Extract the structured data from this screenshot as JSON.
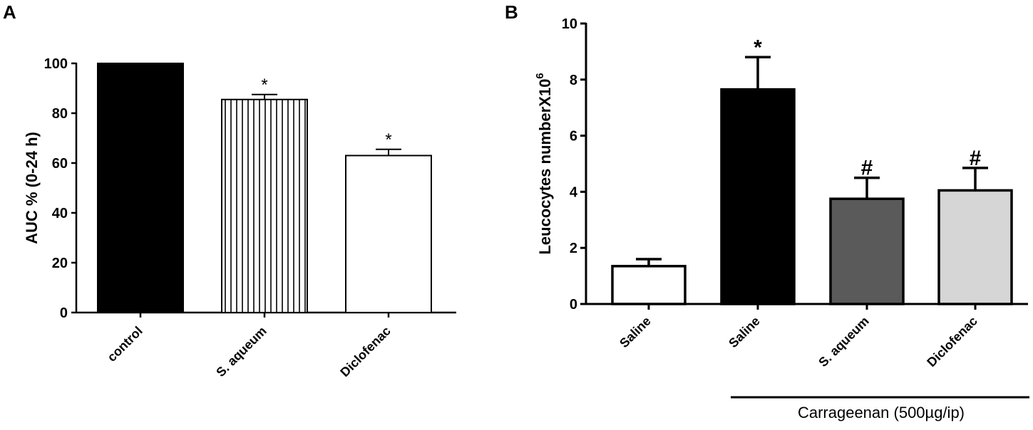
{
  "panels": [
    {
      "letter": "A"
    },
    {
      "letter": "B"
    }
  ],
  "chart_data": [
    {
      "type": "bar",
      "panel": "A",
      "title": "",
      "xlabel": "",
      "ylabel": "AUC % (0-24 h)",
      "ylim": [
        0,
        100
      ],
      "yticks": [
        "0",
        "20",
        "40",
        "60",
        "80",
        "100"
      ],
      "categories": [
        "control",
        "S. aqueum",
        "Diclofenac"
      ],
      "values": [
        100,
        85.5,
        63
      ],
      "errors": [
        0,
        2,
        2.5
      ],
      "significance": [
        "",
        "*",
        "*"
      ],
      "fills": [
        "#000000",
        "vertical-stripes",
        "#ffffff"
      ],
      "grid": false
    },
    {
      "type": "bar",
      "panel": "B",
      "title": "",
      "xlabel": "",
      "ylabel": "Leucocytes numberX10",
      "ylabel_superscript": "6",
      "ylim": [
        0,
        10
      ],
      "yticks": [
        "0",
        "2",
        "4",
        "6",
        "8",
        "10"
      ],
      "categories": [
        "Saline",
        "Saline",
        "S. aqueum",
        "Diclofenac"
      ],
      "values": [
        1.35,
        7.65,
        3.75,
        4.05
      ],
      "errors": [
        0.25,
        1.15,
        0.75,
        0.8
      ],
      "significance": [
        "",
        "*",
        "#",
        "#"
      ],
      "fills": [
        "#ffffff",
        "#000000",
        "#5a5a5a",
        "#d6d6d6"
      ],
      "group_label": "Carrageenan (500µg/ip)",
      "grid": false
    }
  ]
}
